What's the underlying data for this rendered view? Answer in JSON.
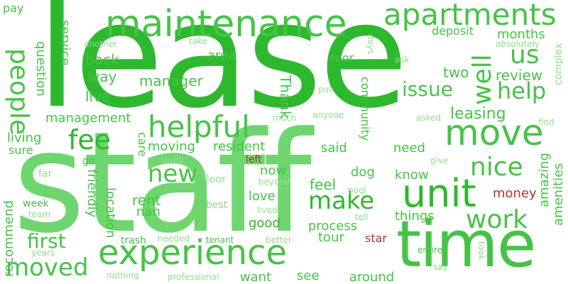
{
  "colors": {
    "background": "#ffffff",
    "positive_dark": "#2eb82e",
    "positive_mid": "#46c346",
    "positive_light": "#6fd66f",
    "positive_pale": "#8fdf8f",
    "negative": "#b83232"
  },
  "words": {
    "lease": "lease",
    "staff": "staff",
    "maintenance": "maintenance",
    "experience": "experience",
    "time": "time",
    "apartments": "apartments",
    "move": "move",
    "unit": "unit",
    "people": "people",
    "helpful": "helpful",
    "fee": "fee",
    "well": "well",
    "help": "help",
    "us": "us",
    "work": "work",
    "nice": "nice",
    "new": "new",
    "make": "make",
    "moved": "moved",
    "first": "first",
    "leasing": "leasing",
    "issue": "issue",
    "management": "management",
    "back": "back",
    "way": "way",
    "manager": "manager",
    "area": "area",
    "service": "service",
    "question": "question",
    "review": "review",
    "months": "months",
    "two": "two",
    "deposit": "deposit",
    "live": "live",
    "living": "living",
    "sure": "sure",
    "moving": "moving",
    "resident": "resident",
    "said": "said",
    "need": "need",
    "care": "care",
    "Thank": "Thank",
    "community": "community",
    "door": "door",
    "put": "put",
    "go": "go",
    "far": "far",
    "walk": "walk",
    "floor": "floor",
    "now": "now",
    "dog": "dog",
    "know": "know",
    "feel": "feel",
    "rent": "rent",
    "nan": "nan",
    "love": "love",
    "good": "good",
    "process": "process",
    "things": "things",
    "tour": "tour",
    "amazing": "amazing",
    "amenities": "amenities",
    "recommend": "recommend",
    "friendly": "friendly",
    "location": "location",
    "week": "week",
    "team": "team",
    "best": "best",
    "beyond": "beyond",
    "pool": "pool",
    "lived": "lived",
    "tell": "tell",
    "money": "money",
    "left": "left",
    "star": "star",
    "years": "years",
    "trash": "trash",
    "needed": "needed",
    "tenant": "tenant",
    "better": "better",
    "entire": "entire",
    "took": "took",
    "say": "say",
    "nothing": "nothing",
    "professional": "professional",
    "want": "want",
    "see": "see",
    "around": "around",
    "pay": "pay",
    "another": "another",
    "take": "take",
    "days": "days",
    "ask": "ask",
    "absolutely": "absolutely",
    "complex": "complex",
    "much": "much",
    "anyone": "anyone",
    "asked": "asked",
    "find": "find",
    "give": "give"
  }
}
